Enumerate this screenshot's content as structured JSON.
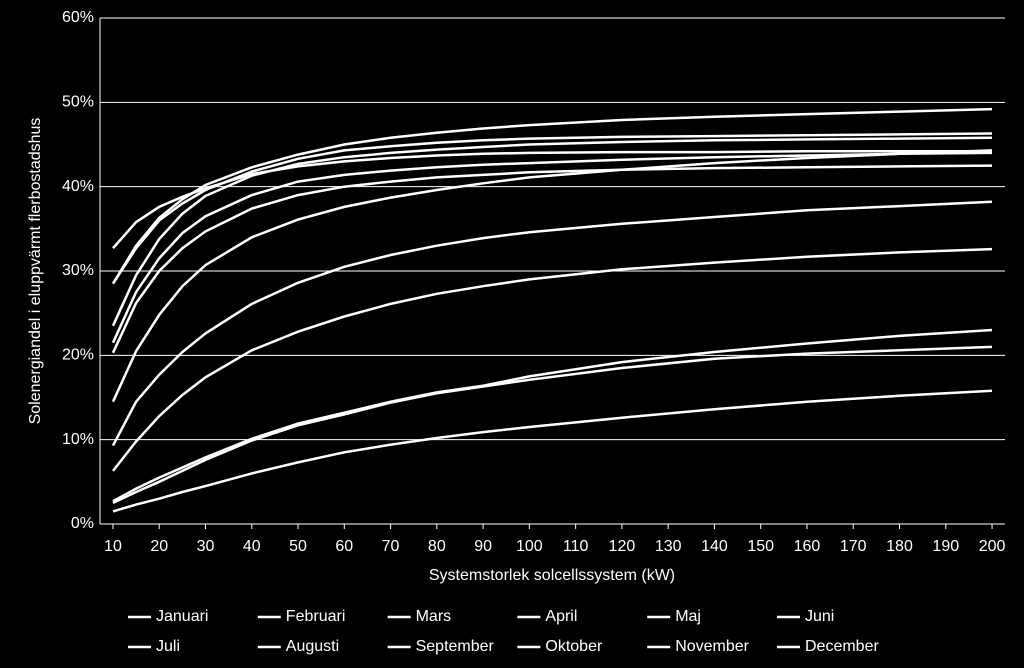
{
  "chart_data": {
    "type": "line",
    "y_label": "Solenergiandel i eluppvärmt flerbostadshus",
    "x_label": "Systemstorlek solcellssystem (kW)",
    "x": [
      10,
      15,
      20,
      25,
      30,
      40,
      50,
      60,
      70,
      80,
      90,
      100,
      120,
      140,
      160,
      180,
      200
    ],
    "xlim": [
      7.2,
      202.8
    ],
    "xticks": [
      10,
      20,
      30,
      40,
      50,
      60,
      70,
      80,
      90,
      100,
      110,
      120,
      130,
      140,
      150,
      160,
      170,
      180,
      190,
      200
    ],
    "ylim": [
      0,
      60
    ],
    "yticks": [
      {
        "value": 0,
        "label": "0%"
      },
      {
        "value": 10,
        "label": "10%"
      },
      {
        "value": 20,
        "label": "20%"
      },
      {
        "value": 30,
        "label": "30%"
      },
      {
        "value": 40,
        "label": "40%"
      },
      {
        "value": 50,
        "label": "50%"
      },
      {
        "value": 60,
        "label": "60%"
      }
    ],
    "grid": true,
    "series": [
      {
        "name": "Januari",
        "color": "#ffffff",
        "values": [
          2.5,
          3.8,
          5.0,
          6.3,
          7.6,
          9.9,
          11.7,
          13.0,
          14.4,
          15.5,
          16.3,
          17.1,
          18.5,
          19.6,
          20.2,
          20.6,
          21.0
        ]
      },
      {
        "name": "Februari",
        "color": "#ffffff",
        "values": [
          6.3,
          9.8,
          12.8,
          15.3,
          17.4,
          20.6,
          22.8,
          24.6,
          26.1,
          27.3,
          28.2,
          29.0,
          30.2,
          31.0,
          31.7,
          32.2,
          32.6
        ]
      },
      {
        "name": "Mars",
        "color": "#ffffff",
        "values": [
          14.5,
          20.5,
          24.8,
          28.2,
          30.7,
          34.0,
          36.1,
          37.6,
          38.7,
          39.6,
          40.4,
          41.1,
          42.0,
          42.8,
          43.4,
          43.9,
          44.3
        ]
      },
      {
        "name": "April",
        "color": "#ffffff",
        "values": [
          21.5,
          27.5,
          31.5,
          34.5,
          36.5,
          39.0,
          40.6,
          41.4,
          41.9,
          42.3,
          42.6,
          42.8,
          43.2,
          43.5,
          43.7,
          43.9,
          44.0
        ]
      },
      {
        "name": "Maj",
        "color": "#ffffff",
        "values": [
          28.5,
          32.7,
          36.0,
          38.0,
          39.6,
          41.8,
          43.3,
          44.3,
          44.8,
          45.2,
          45.5,
          45.7,
          45.9,
          46.0,
          46.1,
          46.2,
          46.3
        ]
      },
      {
        "name": "Juni",
        "color": "#ffffff",
        "values": [
          32.7,
          35.8,
          37.6,
          38.8,
          39.8,
          41.5,
          42.4,
          43.0,
          43.4,
          43.7,
          43.9,
          44.0,
          44.1,
          44.1,
          44.2,
          44.2,
          44.2
        ]
      },
      {
        "name": "Juli",
        "color": "#ffffff",
        "values": [
          28.5,
          33.0,
          36.3,
          38.5,
          40.2,
          42.3,
          43.8,
          45.0,
          45.8,
          46.4,
          46.9,
          47.3,
          47.9,
          48.3,
          48.6,
          48.9,
          49.2
        ]
      },
      {
        "name": "Augusti",
        "color": "#ffffff",
        "values": [
          23.5,
          29.5,
          33.8,
          36.8,
          38.9,
          41.3,
          42.7,
          43.5,
          44.0,
          44.4,
          44.7,
          45.0,
          45.3,
          45.5,
          45.6,
          45.7,
          45.8
        ]
      },
      {
        "name": "September",
        "color": "#ffffff",
        "values": [
          20.3,
          26.2,
          30.0,
          32.7,
          34.7,
          37.4,
          39.0,
          40.0,
          40.6,
          41.1,
          41.4,
          41.7,
          42.0,
          42.2,
          42.3,
          42.4,
          42.5
        ]
      },
      {
        "name": "Oktober",
        "color": "#ffffff",
        "values": [
          9.3,
          14.5,
          17.7,
          20.4,
          22.6,
          26.1,
          28.6,
          30.5,
          31.9,
          33.0,
          33.9,
          34.6,
          35.6,
          36.4,
          37.2,
          37.7,
          38.2
        ]
      },
      {
        "name": "November",
        "color": "#ffffff",
        "values": [
          2.7,
          4.2,
          5.5,
          6.7,
          7.9,
          10.1,
          11.9,
          13.2,
          14.5,
          15.6,
          16.4,
          17.5,
          19.2,
          20.4,
          21.4,
          22.3,
          23.0
        ]
      },
      {
        "name": "December",
        "color": "#ffffff",
        "values": [
          1.5,
          2.3,
          3.0,
          3.8,
          4.5,
          6.0,
          7.3,
          8.5,
          9.4,
          10.2,
          10.9,
          11.5,
          12.6,
          13.6,
          14.5,
          15.2,
          15.8
        ]
      }
    ]
  }
}
